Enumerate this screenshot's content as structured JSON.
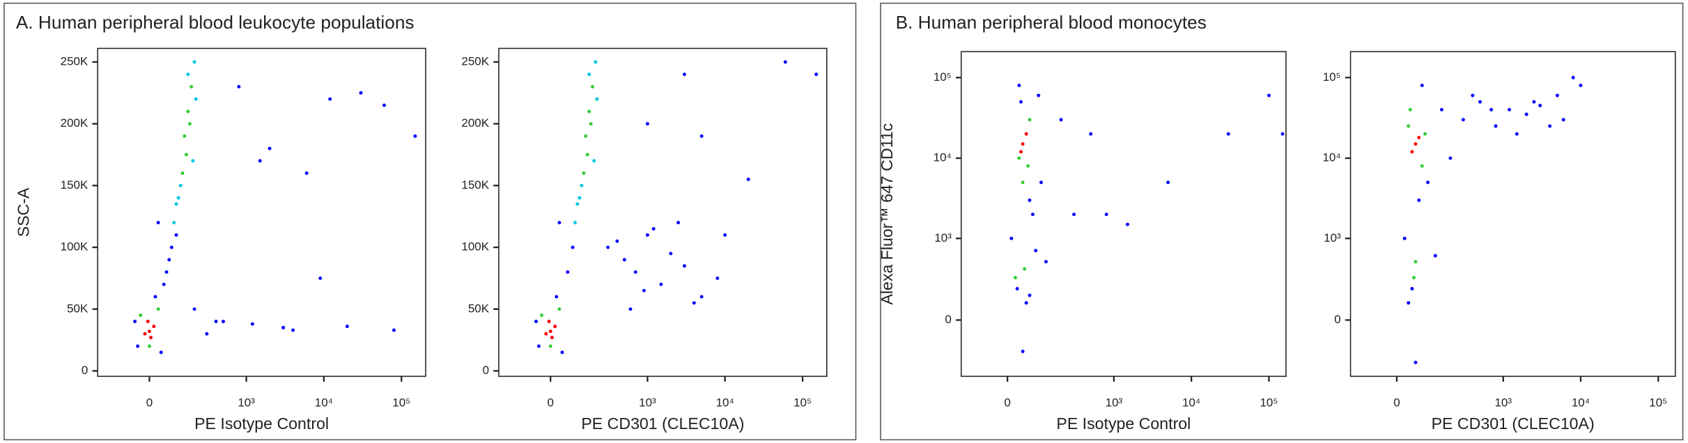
{
  "panels": [
    {
      "title": "A. Human peripheral blood leukocyte populations"
    },
    {
      "title": "B. Human peripheral blood monocytes"
    }
  ],
  "chart_data": [
    {
      "type": "scatter",
      "ylabel": "SSC-A",
      "xlabel": "PE Isotype Control",
      "xscale": "arcsinh",
      "xcofactor": 113,
      "xlim": [
        -250,
        205000
      ],
      "xticks": [
        0,
        {
          "value": 1000,
          "label": "10³"
        },
        {
          "value": 10000,
          "label": "10⁴"
        },
        {
          "value": 100000,
          "label": "10⁵"
        }
      ],
      "yscale": "linear",
      "ylim": [
        -4400,
        261000
      ],
      "yticks": [
        0,
        {
          "value": 50000,
          "label": "50K"
        },
        {
          "value": 100000,
          "label": "100K"
        },
        {
          "value": 150000,
          "label": "150K"
        },
        {
          "value": 200000,
          "label": "200K"
        },
        {
          "value": 250000,
          "label": "250K"
        }
      ],
      "series": [
        {
          "color": "#0000ff",
          "x": [
            -40,
            40,
            20,
            60,
            80,
            30,
            -50,
            50,
            70,
            100,
            500,
            800,
            1500,
            3000,
            6000,
            12000,
            30000,
            60000,
            150000,
            2000,
            9000,
            400,
            1200,
            4000,
            20000,
            80000,
            200,
            300
          ],
          "values": [
            20000,
            15000,
            60000,
            80000,
            100000,
            120000,
            40000,
            70000,
            90000,
            110000,
            40000,
            230000,
            170000,
            35000,
            160000,
            220000,
            225000,
            215000,
            190000,
            180000,
            75000,
            40000,
            38000,
            33000,
            36000,
            33000,
            50000,
            30000
          ]
        },
        {
          "color": "#00c8e0",
          "x": [
            120,
            200,
            190,
            110,
            160,
            100,
            210,
            90
          ],
          "values": [
            150000,
            250000,
            170000,
            140000,
            240000,
            135000,
            220000,
            120000
          ]
        },
        {
          "color": "#33cc33",
          "x": [
            140,
            160,
            180,
            150,
            170,
            130,
            -30,
            30,
            0
          ],
          "values": [
            190000,
            210000,
            230000,
            175000,
            200000,
            160000,
            45000,
            50000,
            20000
          ]
        },
        {
          "color": "#ff0000",
          "x": [
            0,
            -15,
            15,
            5,
            -5
          ],
          "values": [
            32000,
            30000,
            36000,
            27000,
            40000
          ]
        }
      ]
    },
    {
      "type": "scatter",
      "xlabel": "PE CD301 (CLEC10A)",
      "xscale": "arcsinh",
      "xcofactor": 113,
      "xlim": [
        -250,
        205000
      ],
      "xticks": [
        0,
        {
          "value": 1000,
          "label": "10³"
        },
        {
          "value": 10000,
          "label": "10⁴"
        },
        {
          "value": 100000,
          "label": "10⁵"
        }
      ],
      "yscale": "linear",
      "ylim": [
        -4400,
        261000
      ],
      "yticks": [
        0,
        {
          "value": 50000,
          "label": "50K"
        },
        {
          "value": 100000,
          "label": "100K"
        },
        {
          "value": 150000,
          "label": "150K"
        },
        {
          "value": 200000,
          "label": "200K"
        },
        {
          "value": 250000,
          "label": "250K"
        }
      ],
      "series": [
        {
          "color": "#0000ff",
          "x": [
            -40,
            40,
            20,
            60,
            80,
            30,
            -50,
            300,
            500,
            700,
            1000,
            1500,
            2000,
            3000,
            5000,
            8000,
            600,
            900,
            400,
            2500,
            1200,
            4000,
            1000,
            3000,
            20000,
            60000,
            150000,
            5000,
            10000
          ],
          "values": [
            20000,
            15000,
            60000,
            80000,
            100000,
            120000,
            40000,
            100000,
            90000,
            80000,
            110000,
            70000,
            95000,
            85000,
            60000,
            75000,
            50000,
            65000,
            105000,
            120000,
            115000,
            55000,
            200000,
            240000,
            155000,
            250000,
            240000,
            190000,
            110000
          ]
        },
        {
          "color": "#00c8e0",
          "x": [
            120,
            200,
            190,
            110,
            160,
            100,
            210,
            90
          ],
          "values": [
            150000,
            250000,
            170000,
            140000,
            240000,
            135000,
            220000,
            120000
          ]
        },
        {
          "color": "#33cc33",
          "x": [
            140,
            160,
            180,
            150,
            170,
            130,
            -30,
            30,
            0
          ],
          "values": [
            190000,
            210000,
            230000,
            175000,
            200000,
            160000,
            45000,
            50000,
            20000
          ]
        },
        {
          "color": "#ff0000",
          "x": [
            0,
            -15,
            15,
            5,
            -5
          ],
          "values": [
            32000,
            30000,
            36000,
            27000,
            40000
          ]
        }
      ]
    },
    {
      "type": "scatter",
      "ylabel": "Alexa Fluor™ 647  CD11c",
      "xlabel": "PE Isotype Control",
      "xscale": "arcsinh",
      "xcofactor": 85,
      "xlim": [
        -157,
        166000
      ],
      "xticks": [
        0,
        {
          "value": 1000,
          "label": "10³"
        },
        {
          "value": 10000,
          "label": "10⁴"
        },
        {
          "value": 100000,
          "label": "10⁵"
        }
      ],
      "yscale": "arcsinh",
      "ycofactor": 196,
      "ylim": [
        -470,
        210000
      ],
      "yticks": [
        0,
        {
          "value": 1000,
          "label": "10³"
        },
        {
          "value": 10000,
          "label": "10⁴"
        },
        {
          "value": 100000,
          "label": "10⁵"
        }
      ],
      "series": [
        {
          "color": "#0000ff",
          "x": [
            10,
            70,
            90,
            30,
            50,
            120,
            200,
            60,
            25,
            80,
            100,
            300,
            500,
            1500,
            5000,
            30000,
            100000,
            150000,
            800,
            40,
            35,
            60
          ],
          "values": [
            1000,
            2000,
            60000,
            80000,
            100,
            500,
            30000,
            3000,
            200,
            700,
            5000,
            2000,
            20000,
            1500,
            5000,
            20000,
            60000,
            20000,
            2000,
            -200,
            50000,
            150
          ]
        },
        {
          "color": "#33cc33",
          "x": [
            30,
            60,
            45,
            20,
            55,
            40
          ],
          "values": [
            10000,
            30000,
            400,
            300,
            8000,
            5000
          ]
        },
        {
          "color": "#ff0000",
          "x": [
            40,
            50,
            35
          ],
          "values": [
            15000,
            20000,
            12000
          ]
        }
      ]
    },
    {
      "type": "scatter",
      "xlabel": "PE CD301 (CLEC10A)",
      "xscale": "arcsinh",
      "xcofactor": 85,
      "xlim": [
        -157,
        166000
      ],
      "xticks": [
        0,
        {
          "value": 1000,
          "label": "10³"
        },
        {
          "value": 10000,
          "label": "10⁴"
        },
        {
          "value": 100000,
          "label": "10⁵"
        }
      ],
      "yscale": "arcsinh",
      "ycofactor": 196,
      "ylim": [
        -470,
        210000
      ],
      "yticks": [
        0,
        {
          "value": 1000,
          "label": "10³"
        },
        {
          "value": 10000,
          "label": "10⁴"
        },
        {
          "value": 100000,
          "label": "10⁵"
        }
      ],
      "series": [
        {
          "color": "#0000ff",
          "x": [
            20,
            60,
            40,
            90,
            30,
            150,
            300,
            500,
            800,
            1200,
            2000,
            3000,
            5000,
            8000,
            10000,
            400,
            1500,
            6000,
            700,
            2500,
            4000,
            50,
            70,
            200,
            120
          ],
          "values": [
            1000,
            3000,
            200,
            5000,
            100,
            40000,
            30000,
            50000,
            25000,
            40000,
            35000,
            45000,
            60000,
            100000,
            80000,
            60000,
            20000,
            30000,
            40000,
            50000,
            25000,
            -300,
            80000,
            10000,
            600
          ]
        },
        {
          "color": "#33cc33",
          "x": [
            30,
            70,
            45,
            50,
            35,
            80
          ],
          "values": [
            25000,
            8000,
            300,
            500,
            40000,
            20000
          ]
        },
        {
          "color": "#ff0000",
          "x": [
            50,
            60,
            40
          ],
          "values": [
            15000,
            18000,
            12000
          ]
        }
      ]
    }
  ]
}
